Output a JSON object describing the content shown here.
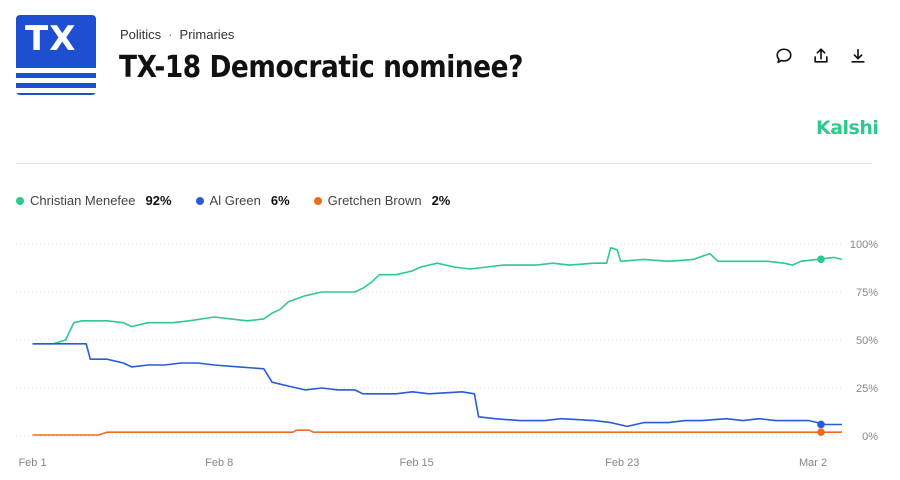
{
  "header": {
    "logo_text": "TX",
    "breadcrumb": [
      "Politics",
      "Primaries"
    ],
    "title": "TX-18 Democratic nominee?",
    "brand": "Kalshi"
  },
  "actions": [
    "comment-icon",
    "share-icon",
    "download-icon"
  ],
  "colors": {
    "green": "#2ec98d",
    "blue": "#2a5bd7",
    "orange": "#f26b1d",
    "grid": "#dcdcdc"
  },
  "chart_data": {
    "type": "line",
    "title": "TX-18 Democratic nominee?",
    "xlabel": "",
    "ylabel": "",
    "xlim": [
      0,
      1
    ],
    "ylim": [
      0,
      100
    ],
    "x_ticks": [
      {
        "pos": 0.02,
        "label": "Feb 1"
      },
      {
        "pos": 0.246,
        "label": "Feb 8"
      },
      {
        "pos": 0.485,
        "label": "Feb 15"
      },
      {
        "pos": 0.734,
        "label": "Feb 23"
      },
      {
        "pos": 0.965,
        "label": "Mar 2"
      }
    ],
    "y_ticks": [
      0,
      25,
      50,
      75,
      100
    ],
    "y_tick_labels": [
      "0%",
      "25%",
      "50%",
      "75%",
      "100%"
    ],
    "series": [
      {
        "name": "Christian Menefee",
        "current": "92%",
        "color": "#2ec98d",
        "points": [
          [
            0.02,
            48
          ],
          [
            0.045,
            48
          ],
          [
            0.06,
            50
          ],
          [
            0.07,
            59
          ],
          [
            0.08,
            60
          ],
          [
            0.11,
            60
          ],
          [
            0.13,
            59
          ],
          [
            0.14,
            57
          ],
          [
            0.16,
            59
          ],
          [
            0.19,
            59
          ],
          [
            0.21,
            60
          ],
          [
            0.24,
            62
          ],
          [
            0.26,
            61
          ],
          [
            0.28,
            60
          ],
          [
            0.3,
            61
          ],
          [
            0.31,
            64
          ],
          [
            0.32,
            66
          ],
          [
            0.33,
            70
          ],
          [
            0.35,
            73
          ],
          [
            0.37,
            75
          ],
          [
            0.39,
            75
          ],
          [
            0.41,
            75
          ],
          [
            0.42,
            77
          ],
          [
            0.43,
            80
          ],
          [
            0.44,
            84
          ],
          [
            0.46,
            84
          ],
          [
            0.48,
            86
          ],
          [
            0.49,
            88
          ],
          [
            0.51,
            90
          ],
          [
            0.53,
            88
          ],
          [
            0.55,
            87
          ],
          [
            0.57,
            88
          ],
          [
            0.59,
            89
          ],
          [
            0.61,
            89
          ],
          [
            0.63,
            89
          ],
          [
            0.65,
            90
          ],
          [
            0.67,
            89
          ],
          [
            0.7,
            90
          ],
          [
            0.715,
            90
          ],
          [
            0.72,
            98
          ],
          [
            0.728,
            97
          ],
          [
            0.732,
            91
          ],
          [
            0.76,
            92
          ],
          [
            0.79,
            91
          ],
          [
            0.82,
            92
          ],
          [
            0.84,
            95
          ],
          [
            0.85,
            91
          ],
          [
            0.88,
            91
          ],
          [
            0.91,
            91
          ],
          [
            0.93,
            90
          ],
          [
            0.94,
            89
          ],
          [
            0.95,
            91
          ],
          [
            0.97,
            92
          ],
          [
            0.99,
            93
          ],
          [
            1.0,
            92
          ]
        ]
      },
      {
        "name": "Al Green",
        "current": "6%",
        "color": "#2a5bd7",
        "points": [
          [
            0.02,
            48
          ],
          [
            0.05,
            48
          ],
          [
            0.085,
            48
          ],
          [
            0.09,
            40
          ],
          [
            0.11,
            40
          ],
          [
            0.13,
            38
          ],
          [
            0.14,
            36
          ],
          [
            0.16,
            37
          ],
          [
            0.18,
            37
          ],
          [
            0.2,
            38
          ],
          [
            0.22,
            38
          ],
          [
            0.24,
            37
          ],
          [
            0.27,
            36
          ],
          [
            0.3,
            35
          ],
          [
            0.31,
            28
          ],
          [
            0.33,
            26
          ],
          [
            0.35,
            24
          ],
          [
            0.37,
            25
          ],
          [
            0.39,
            24
          ],
          [
            0.41,
            24
          ],
          [
            0.42,
            22
          ],
          [
            0.44,
            22
          ],
          [
            0.46,
            22
          ],
          [
            0.48,
            23
          ],
          [
            0.5,
            22
          ],
          [
            0.54,
            23
          ],
          [
            0.555,
            22
          ],
          [
            0.56,
            10
          ],
          [
            0.58,
            9
          ],
          [
            0.61,
            8
          ],
          [
            0.64,
            8
          ],
          [
            0.66,
            9
          ],
          [
            0.7,
            8
          ],
          [
            0.72,
            7
          ],
          [
            0.74,
            5
          ],
          [
            0.76,
            7
          ],
          [
            0.79,
            7
          ],
          [
            0.81,
            8
          ],
          [
            0.83,
            8
          ],
          [
            0.86,
            9
          ],
          [
            0.88,
            8
          ],
          [
            0.9,
            9
          ],
          [
            0.92,
            8
          ],
          [
            0.94,
            8
          ],
          [
            0.96,
            8
          ],
          [
            0.98,
            6
          ],
          [
            1.0,
            6
          ]
        ]
      },
      {
        "name": "Gretchen Brown",
        "current": "2%",
        "color": "#f26b1d",
        "points": [
          [
            0.02,
            0.5
          ],
          [
            0.1,
            0.5
          ],
          [
            0.11,
            2
          ],
          [
            0.2,
            2
          ],
          [
            0.3,
            2
          ],
          [
            0.335,
            2
          ],
          [
            0.34,
            3
          ],
          [
            0.355,
            3
          ],
          [
            0.36,
            2
          ],
          [
            0.45,
            2
          ],
          [
            0.55,
            2
          ],
          [
            0.65,
            2
          ],
          [
            0.75,
            2
          ],
          [
            0.85,
            2
          ],
          [
            0.95,
            2
          ],
          [
            1.0,
            2
          ]
        ]
      }
    ]
  }
}
